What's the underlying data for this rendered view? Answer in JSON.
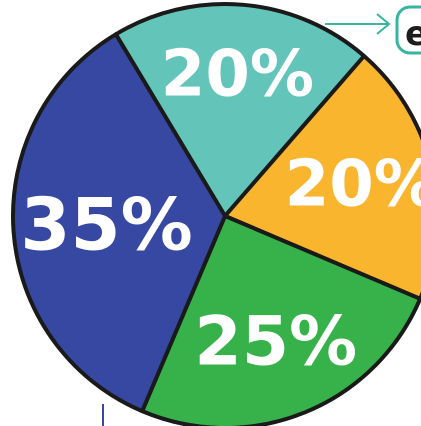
{
  "chart_data": {
    "type": "pie",
    "slices": [
      {
        "label": "20%",
        "value": 20,
        "color": "#63C5BA"
      },
      {
        "label": "20%",
        "value": 20,
        "color": "#F9B52E"
      },
      {
        "label": "25%",
        "value": 25,
        "color": "#37B24A"
      },
      {
        "label": "35%",
        "value": 35,
        "color": "#3748A3"
      }
    ],
    "outline_color": "#1a1a1a",
    "callout": {
      "text": "e",
      "color": "#37B5A0"
    },
    "start_at": "upper-left, clockwise",
    "legend": "none",
    "title": ""
  }
}
